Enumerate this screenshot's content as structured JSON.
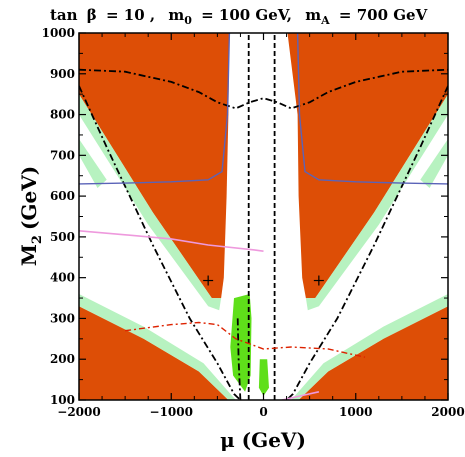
{
  "chart_data": {
    "type": "contour",
    "title_parts": {
      "tan": "tan",
      "beta": "β",
      "tan_value": "= 10 ,",
      "m": "m",
      "m0_sub": "0",
      "m0_value": "= 100 GeV,",
      "mA_sub": "A",
      "mA_value": "= 700 GeV"
    },
    "xlabel": "μ (GeV)",
    "ylabel_main": "M",
    "ylabel_sub": "2",
    "ylabel_units": "(GeV)",
    "xlim": [
      -2000,
      2000
    ],
    "ylim": [
      100,
      1000
    ],
    "xticks": [
      -2000,
      -1000,
      0,
      1000,
      2000
    ],
    "xtick_labels": [
      "−2000",
      "−1000",
      "0",
      "1000",
      "2000"
    ],
    "yticks": [
      100,
      200,
      300,
      400,
      500,
      600,
      700,
      800,
      900,
      1000
    ],
    "colors": {
      "excluded_region": "#dd4e06",
      "relic_light": "#b7f2c0",
      "relic_dark": "#5fdf1a",
      "blue_contour": "#5a63b8",
      "pink_contour": "#ee99dd",
      "red_dashdot": "#dd2200",
      "black": "#000000"
    },
    "regions": [
      {
        "name": "excluded-upper-left",
        "polygon": [
          [
            -2000,
            1000
          ],
          [
            -370,
            1000
          ],
          [
            -380,
            800
          ],
          [
            -400,
            600
          ],
          [
            -430,
            400
          ],
          [
            -460,
            350
          ],
          [
            -560,
            350
          ],
          [
            -1200,
            560
          ],
          [
            -2000,
            850
          ]
        ]
      },
      {
        "name": "excluded-upper-right",
        "polygon": [
          [
            260,
            1000
          ],
          [
            2000,
            1000
          ],
          [
            2000,
            850
          ],
          [
            1200,
            560
          ],
          [
            560,
            350
          ],
          [
            460,
            350
          ],
          [
            420,
            400
          ],
          [
            380,
            600
          ],
          [
            370,
            800
          ]
        ]
      },
      {
        "name": "excluded-lower-left",
        "polygon": [
          [
            -2000,
            100
          ],
          [
            -380,
            100
          ],
          [
            -700,
            170
          ],
          [
            -1300,
            250
          ],
          [
            -2000,
            330
          ]
        ]
      },
      {
        "name": "excluded-lower-right",
        "polygon": [
          [
            380,
            100
          ],
          [
            2000,
            100
          ],
          [
            2000,
            330
          ],
          [
            1300,
            250
          ],
          [
            700,
            170
          ]
        ]
      }
    ],
    "relic_bands_light": [
      {
        "name": "relic-band-upper-left",
        "polygon": [
          [
            -2000,
            850
          ],
          [
            -1200,
            560
          ],
          [
            -560,
            350
          ],
          [
            -460,
            350
          ],
          [
            -480,
            320
          ],
          [
            -600,
            330
          ],
          [
            -1250,
            530
          ],
          [
            -2000,
            800
          ]
        ]
      },
      {
        "name": "relic-band-upper-right",
        "polygon": [
          [
            2000,
            850
          ],
          [
            1200,
            560
          ],
          [
            560,
            350
          ],
          [
            460,
            350
          ],
          [
            480,
            320
          ],
          [
            600,
            330
          ],
          [
            1250,
            530
          ],
          [
            2000,
            800
          ]
        ]
      },
      {
        "name": "relic-band-lower-left",
        "polygon": [
          [
            -2000,
            330
          ],
          [
            -1300,
            250
          ],
          [
            -700,
            170
          ],
          [
            -380,
            100
          ],
          [
            -300,
            100
          ],
          [
            -650,
            190
          ],
          [
            -1300,
            280
          ],
          [
            -2000,
            360
          ]
        ]
      },
      {
        "name": "relic-band-lower-right",
        "polygon": [
          [
            2000,
            330
          ],
          [
            1300,
            250
          ],
          [
            700,
            170
          ],
          [
            380,
            100
          ],
          [
            300,
            100
          ],
          [
            650,
            190
          ],
          [
            1300,
            280
          ],
          [
            2000,
            360
          ]
        ]
      },
      {
        "name": "relic-band-corner-right",
        "polygon": [
          [
            1700,
            640
          ],
          [
            2000,
            740
          ],
          [
            2000,
            700
          ],
          [
            1800,
            620
          ]
        ]
      },
      {
        "name": "relic-band-corner-left",
        "polygon": [
          [
            -1700,
            640
          ],
          [
            -2000,
            740
          ],
          [
            -2000,
            700
          ],
          [
            -1800,
            620
          ]
        ]
      }
    ],
    "relic_bands_dark": [
      {
        "name": "relic-dark-left",
        "polygon": [
          [
            -320,
            350
          ],
          [
            -150,
            360
          ],
          [
            -130,
            300
          ],
          [
            -140,
            160
          ],
          [
            -200,
            120
          ],
          [
            -330,
            160
          ],
          [
            -360,
            230
          ]
        ]
      },
      {
        "name": "relic-dark-center",
        "polygon": [
          [
            -40,
            200
          ],
          [
            40,
            200
          ],
          [
            60,
            130
          ],
          [
            0,
            110
          ],
          [
            -50,
            130
          ]
        ]
      }
    ],
    "series": [
      {
        "name": "chargino-limit-upper",
        "style": "dashdot-black",
        "x": [
          -2000,
          -1500,
          -1000,
          -700,
          -500,
          -300,
          -150,
          0,
          150,
          300,
          500,
          700,
          1000,
          1500,
          2000
        ],
        "y": [
          910,
          905,
          880,
          855,
          830,
          815,
          830,
          840,
          830,
          815,
          830,
          855,
          880,
          905,
          910
        ]
      },
      {
        "name": "chargino-limit-v-left",
        "style": "dashdot-black",
        "x": [
          -2000,
          -1700,
          -1200,
          -800,
          -500,
          -320,
          -250
        ],
        "y": [
          870,
          720,
          480,
          300,
          190,
          115,
          100
        ]
      },
      {
        "name": "chargino-limit-v-right",
        "style": "dashdot-black",
        "x": [
          2000,
          1700,
          1200,
          800,
          500,
          320,
          250
        ],
        "y": [
          870,
          720,
          480,
          300,
          190,
          115,
          100
        ]
      },
      {
        "name": "higgs-boundary-left",
        "style": "dashdot-black",
        "x": [
          -280,
          -270,
          -255,
          -250
        ],
        "y": [
          300,
          200,
          120,
          100
        ]
      },
      {
        "name": "vertical-dashed-left",
        "style": "dashed-black",
        "x": [
          -160,
          -160
        ],
        "y": [
          100,
          1000
        ]
      },
      {
        "name": "vertical-dashed-right",
        "style": "dashed-black",
        "x": [
          120,
          120
        ],
        "y": [
          100,
          1000
        ]
      },
      {
        "name": "blue-contour-left",
        "style": "solid-blue",
        "x": [
          -2000,
          -1500,
          -1000,
          -600,
          -450,
          -390,
          -370
        ],
        "y": [
          630,
          632,
          635,
          640,
          660,
          800,
          1000
        ]
      },
      {
        "name": "blue-contour-right",
        "style": "solid-blue",
        "x": [
          2000,
          1500,
          1000,
          600,
          450,
          390,
          370
        ],
        "y": [
          630,
          632,
          635,
          640,
          660,
          800,
          1000
        ]
      },
      {
        "name": "pink-contour-left",
        "style": "solid-pink",
        "x": [
          -2000,
          -1500,
          -1000,
          -600,
          -100,
          0
        ],
        "y": [
          515,
          505,
          495,
          480,
          468,
          465
        ]
      },
      {
        "name": "pink-contour-bottom",
        "style": "solid-pink",
        "x": [
          200,
          400,
          600
        ],
        "y": [
          100,
          110,
          120
        ]
      },
      {
        "name": "red-dashdot-contour",
        "style": "dashdot-red",
        "x": [
          -1500,
          -1000,
          -700,
          -500,
          -300,
          0,
          300,
          700,
          1100
        ],
        "y": [
          270,
          285,
          290,
          285,
          250,
          225,
          230,
          225,
          205
        ]
      }
    ],
    "markers": [
      {
        "name": "plus-marker-left",
        "x": -600,
        "y": 393
      },
      {
        "name": "plus-marker-right",
        "x": 600,
        "y": 393
      }
    ]
  }
}
